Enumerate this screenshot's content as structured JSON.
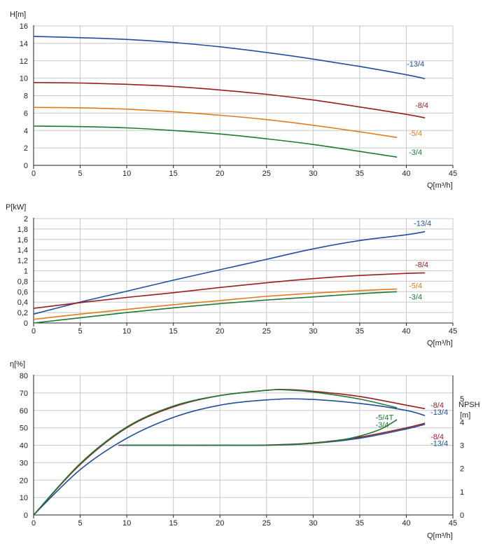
{
  "chart_data": [
    {
      "type": "line",
      "title": "",
      "ylabel": "H[m]",
      "xlabel": "Q[m³/h]",
      "xlim": [
        0,
        45
      ],
      "ylim": [
        0,
        16
      ],
      "xticks": [
        0,
        5,
        10,
        15,
        20,
        25,
        30,
        35,
        40,
        45
      ],
      "yticks": [
        0,
        2,
        4,
        6,
        8,
        10,
        12,
        14,
        16
      ],
      "xtick_labels": [
        "0",
        "5",
        "10",
        "15",
        "20",
        "25",
        "30",
        "35",
        "40",
        "45"
      ],
      "ytick_labels": [
        "0",
        "2",
        "4",
        "6",
        "8",
        "10",
        "12",
        "14",
        "16"
      ],
      "grid": true,
      "series": [
        {
          "name": "-13/4",
          "color": "#1f4ea0",
          "x": [
            0,
            5,
            10,
            15,
            20,
            25,
            30,
            35,
            40,
            42
          ],
          "y": [
            14.8,
            14.65,
            14.45,
            14.1,
            13.6,
            12.95,
            12.2,
            11.35,
            10.4,
            9.95
          ]
        },
        {
          "name": "-8/4",
          "color": "#9c1c20",
          "x": [
            0,
            5,
            10,
            15,
            20,
            25,
            30,
            35,
            40,
            42
          ],
          "y": [
            9.5,
            9.45,
            9.3,
            9.05,
            8.65,
            8.15,
            7.5,
            6.7,
            5.85,
            5.45
          ]
        },
        {
          "name": "-5/4",
          "color": "#e07b1a",
          "x": [
            0,
            5,
            10,
            15,
            20,
            25,
            30,
            35,
            39
          ],
          "y": [
            6.65,
            6.6,
            6.45,
            6.15,
            5.75,
            5.25,
            4.6,
            3.85,
            3.2
          ]
        },
        {
          "name": "-3/4",
          "color": "#1e7a34",
          "x": [
            0,
            5,
            10,
            15,
            20,
            25,
            30,
            35,
            39
          ],
          "y": [
            4.5,
            4.45,
            4.3,
            4.0,
            3.6,
            3.05,
            2.4,
            1.6,
            0.95
          ]
        }
      ]
    },
    {
      "type": "line",
      "title": "",
      "ylabel": "P[kW]",
      "xlabel": "Q[m³/h]",
      "xlim": [
        0,
        45
      ],
      "ylim": [
        0,
        2
      ],
      "xticks": [
        0,
        5,
        10,
        15,
        20,
        25,
        30,
        35,
        40,
        45
      ],
      "yticks": [
        0,
        0.2,
        0.4,
        0.6,
        0.8,
        1,
        1.2,
        1.4,
        1.6,
        1.8,
        2
      ],
      "xtick_labels": [
        "0",
        "5",
        "10",
        "15",
        "20",
        "25",
        "30",
        "35",
        "40",
        "45"
      ],
      "ytick_labels": [
        "0",
        "0,2",
        "0,4",
        "0,6",
        "0,8",
        "1",
        "1,2",
        "1,4",
        "1,6",
        "1,8",
        "2"
      ],
      "grid": true,
      "series": [
        {
          "name": "-13/4",
          "color": "#1f4ea0",
          "x": [
            0,
            5,
            10,
            15,
            20,
            25,
            30,
            35,
            40,
            42
          ],
          "y": [
            0.17,
            0.4,
            0.61,
            0.82,
            1.02,
            1.22,
            1.42,
            1.58,
            1.69,
            1.75
          ]
        },
        {
          "name": "-8/4",
          "color": "#9c1c20",
          "x": [
            0,
            5,
            10,
            15,
            20,
            25,
            30,
            35,
            40,
            42
          ],
          "y": [
            0.28,
            0.39,
            0.49,
            0.58,
            0.68,
            0.77,
            0.85,
            0.91,
            0.95,
            0.96
          ]
        },
        {
          "name": "-5/4",
          "color": "#e07b1a",
          "x": [
            0,
            5,
            10,
            15,
            20,
            25,
            30,
            35,
            39
          ],
          "y": [
            0.07,
            0.17,
            0.26,
            0.35,
            0.43,
            0.51,
            0.57,
            0.62,
            0.65
          ]
        },
        {
          "name": "-3/4",
          "color": "#1e7a34",
          "x": [
            0,
            5,
            10,
            15,
            20,
            25,
            30,
            35,
            39
          ],
          "y": [
            0.0,
            0.1,
            0.2,
            0.29,
            0.37,
            0.44,
            0.5,
            0.56,
            0.6
          ]
        }
      ]
    },
    {
      "type": "line",
      "title": "",
      "ylabel": "η[%]",
      "y2label_line1": "NPSH",
      "y2label_line2": "[m]",
      "xlabel": "Q[m³/h]",
      "xlim": [
        0,
        45
      ],
      "ylim": [
        0,
        80
      ],
      "y2lim": [
        0,
        6
      ],
      "xticks": [
        0,
        5,
        10,
        15,
        20,
        25,
        30,
        35,
        40,
        45
      ],
      "yticks": [
        0,
        10,
        20,
        30,
        40,
        50,
        60,
        70,
        80
      ],
      "y2ticks": [
        0,
        1,
        2,
        3,
        4,
        5
      ],
      "xtick_labels": [
        "0",
        "5",
        "10",
        "15",
        "20",
        "25",
        "30",
        "35",
        "40",
        "45"
      ],
      "ytick_labels": [
        "0",
        "10",
        "20",
        "30",
        "40",
        "50",
        "60",
        "70",
        "80"
      ],
      "y2tick_labels": [
        "0",
        "1",
        "2",
        "3",
        "4",
        "5"
      ],
      "grid": true,
      "series": [
        {
          "name": "-8/4",
          "axis": "left",
          "color": "#9c1c20",
          "x": [
            0,
            5,
            10,
            15,
            20,
            25,
            27,
            30,
            35,
            40,
            42
          ],
          "y": [
            0,
            29,
            50,
            62,
            68.5,
            71.5,
            72,
            71,
            68,
            63,
            61
          ]
        },
        {
          "name": "-13/4",
          "axis": "left",
          "color": "#1f4ea0",
          "x": [
            0,
            5,
            10,
            15,
            20,
            25,
            29,
            35,
            40,
            42
          ],
          "y": [
            0,
            26,
            44,
            56,
            63,
            66,
            66.5,
            64,
            60,
            57
          ]
        },
        {
          "name": "-5/4T",
          "axis": "left",
          "color": "#1e7a34",
          "x": [
            0,
            5,
            10,
            15,
            20,
            25,
            27,
            30,
            35,
            39
          ],
          "y": [
            0,
            29.5,
            50.5,
            62.5,
            68.5,
            71.5,
            71.8,
            70.5,
            66.5,
            61.5
          ]
        },
        {
          "name": "-8/4",
          "axis": "right",
          "color": "#9c1c20",
          "x": [
            9.1,
            15,
            20,
            25,
            30,
            35,
            40,
            42
          ],
          "y": [
            3.0,
            3.0,
            3.0,
            3.01,
            3.1,
            3.35,
            3.75,
            3.95
          ]
        },
        {
          "name": "-13/4",
          "axis": "right",
          "color": "#1f4ea0",
          "x": [
            9.5,
            15,
            20,
            25,
            30,
            35,
            40,
            42
          ],
          "y": [
            3.0,
            3.0,
            3.0,
            3.0,
            3.08,
            3.3,
            3.7,
            3.9
          ]
        },
        {
          "name": "-3/4",
          "axis": "right",
          "color": "#1e7a34",
          "x": [
            9.8,
            15,
            20,
            25,
            28,
            31,
            34,
            37,
            39
          ],
          "y": [
            3.0,
            3.0,
            3.0,
            3.0,
            3.03,
            3.12,
            3.3,
            3.65,
            4.1
          ]
        }
      ],
      "labels": [
        {
          "text": "-8/4",
          "color": "#9c1c20",
          "x": 43.2,
          "y": 61.5
        },
        {
          "text": "-13/4",
          "color": "#1f4ea0",
          "x": 43.2,
          "y": 57.5
        },
        {
          "text": "-5/4T",
          "color": "#1e7a34",
          "x": 37.3,
          "y": 54.5
        },
        {
          "text": "-3/4",
          "color": "#1e7a34",
          "x": 37.3,
          "y": 50.2
        },
        {
          "text": "-8/4",
          "color": "#9c1c20",
          "x": 43.2,
          "y": 43.5
        },
        {
          "text": "-13/4",
          "color": "#1f4ea0",
          "x": 43.2,
          "y": 39.5
        }
      ]
    }
  ]
}
